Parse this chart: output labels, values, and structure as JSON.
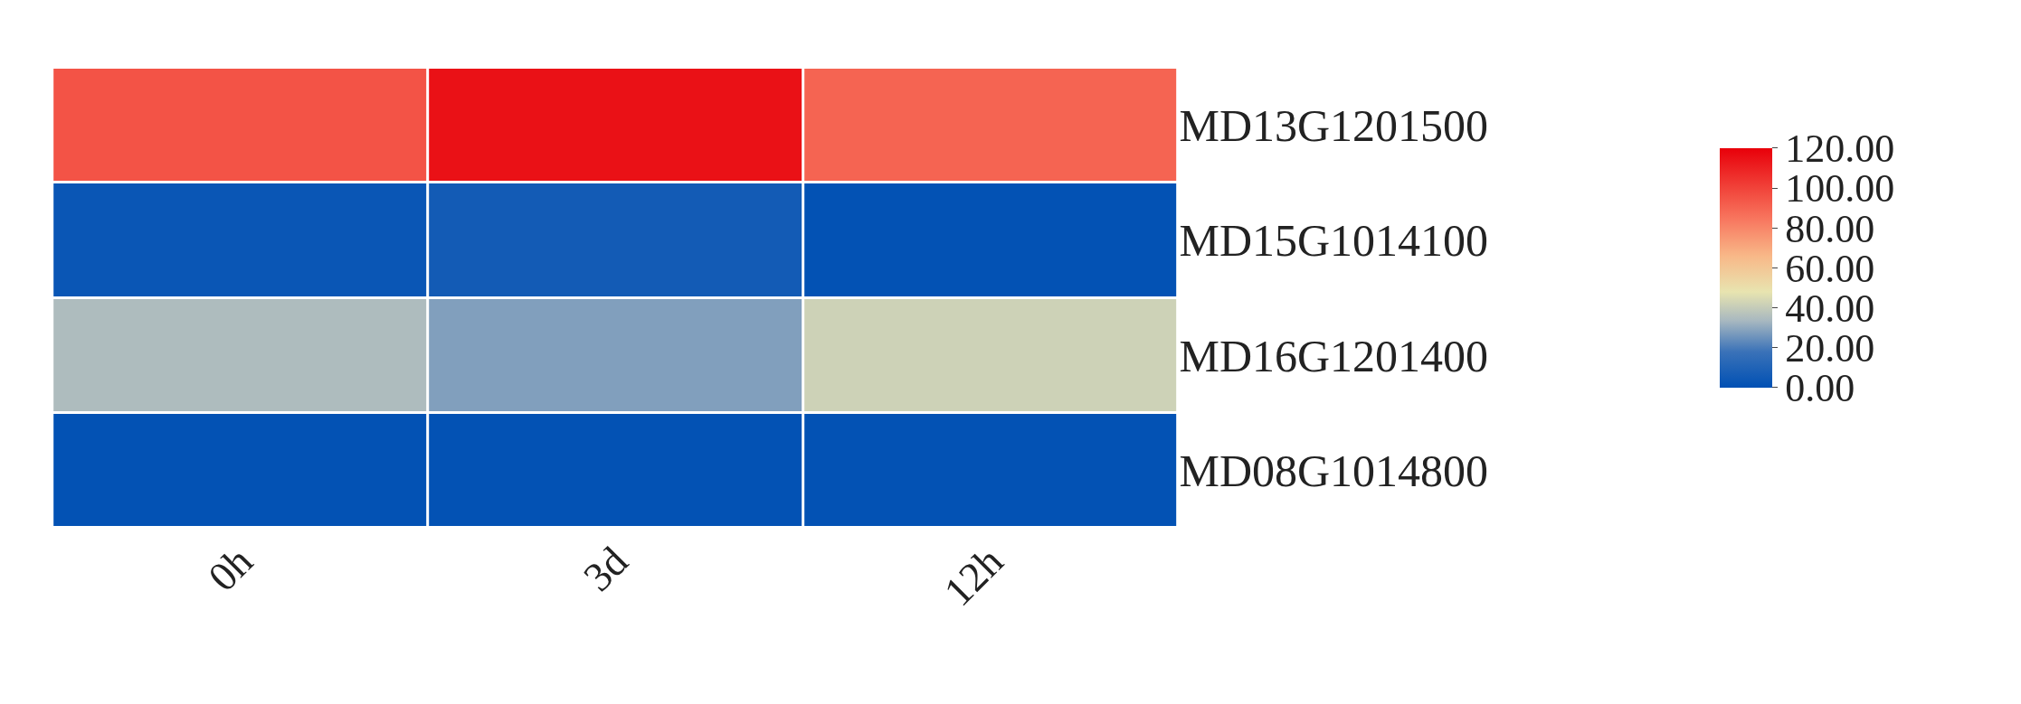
{
  "chart_data": {
    "type": "heatmap",
    "categories": [
      "0h",
      "3d",
      "12h"
    ],
    "y_categories": [
      "MD13G1201500",
      "MD15G1014100",
      "MD16G1201400",
      "MD08G1014800"
    ],
    "cells": [
      [
        95,
        115,
        90
      ],
      [
        3,
        6,
        1
      ],
      [
        35,
        28,
        42
      ],
      [
        1,
        1,
        1
      ]
    ],
    "clim": [
      0,
      120
    ],
    "cticks": [
      {
        "value": 0,
        "label": "0.00"
      },
      {
        "value": 20,
        "label": "20.00"
      },
      {
        "value": 40,
        "label": "40.00"
      },
      {
        "value": 60,
        "label": "60.00"
      },
      {
        "value": 80,
        "label": "80.00"
      },
      {
        "value": 100,
        "label": "100.00"
      },
      {
        "value": 120,
        "label": "120.00"
      }
    ]
  }
}
